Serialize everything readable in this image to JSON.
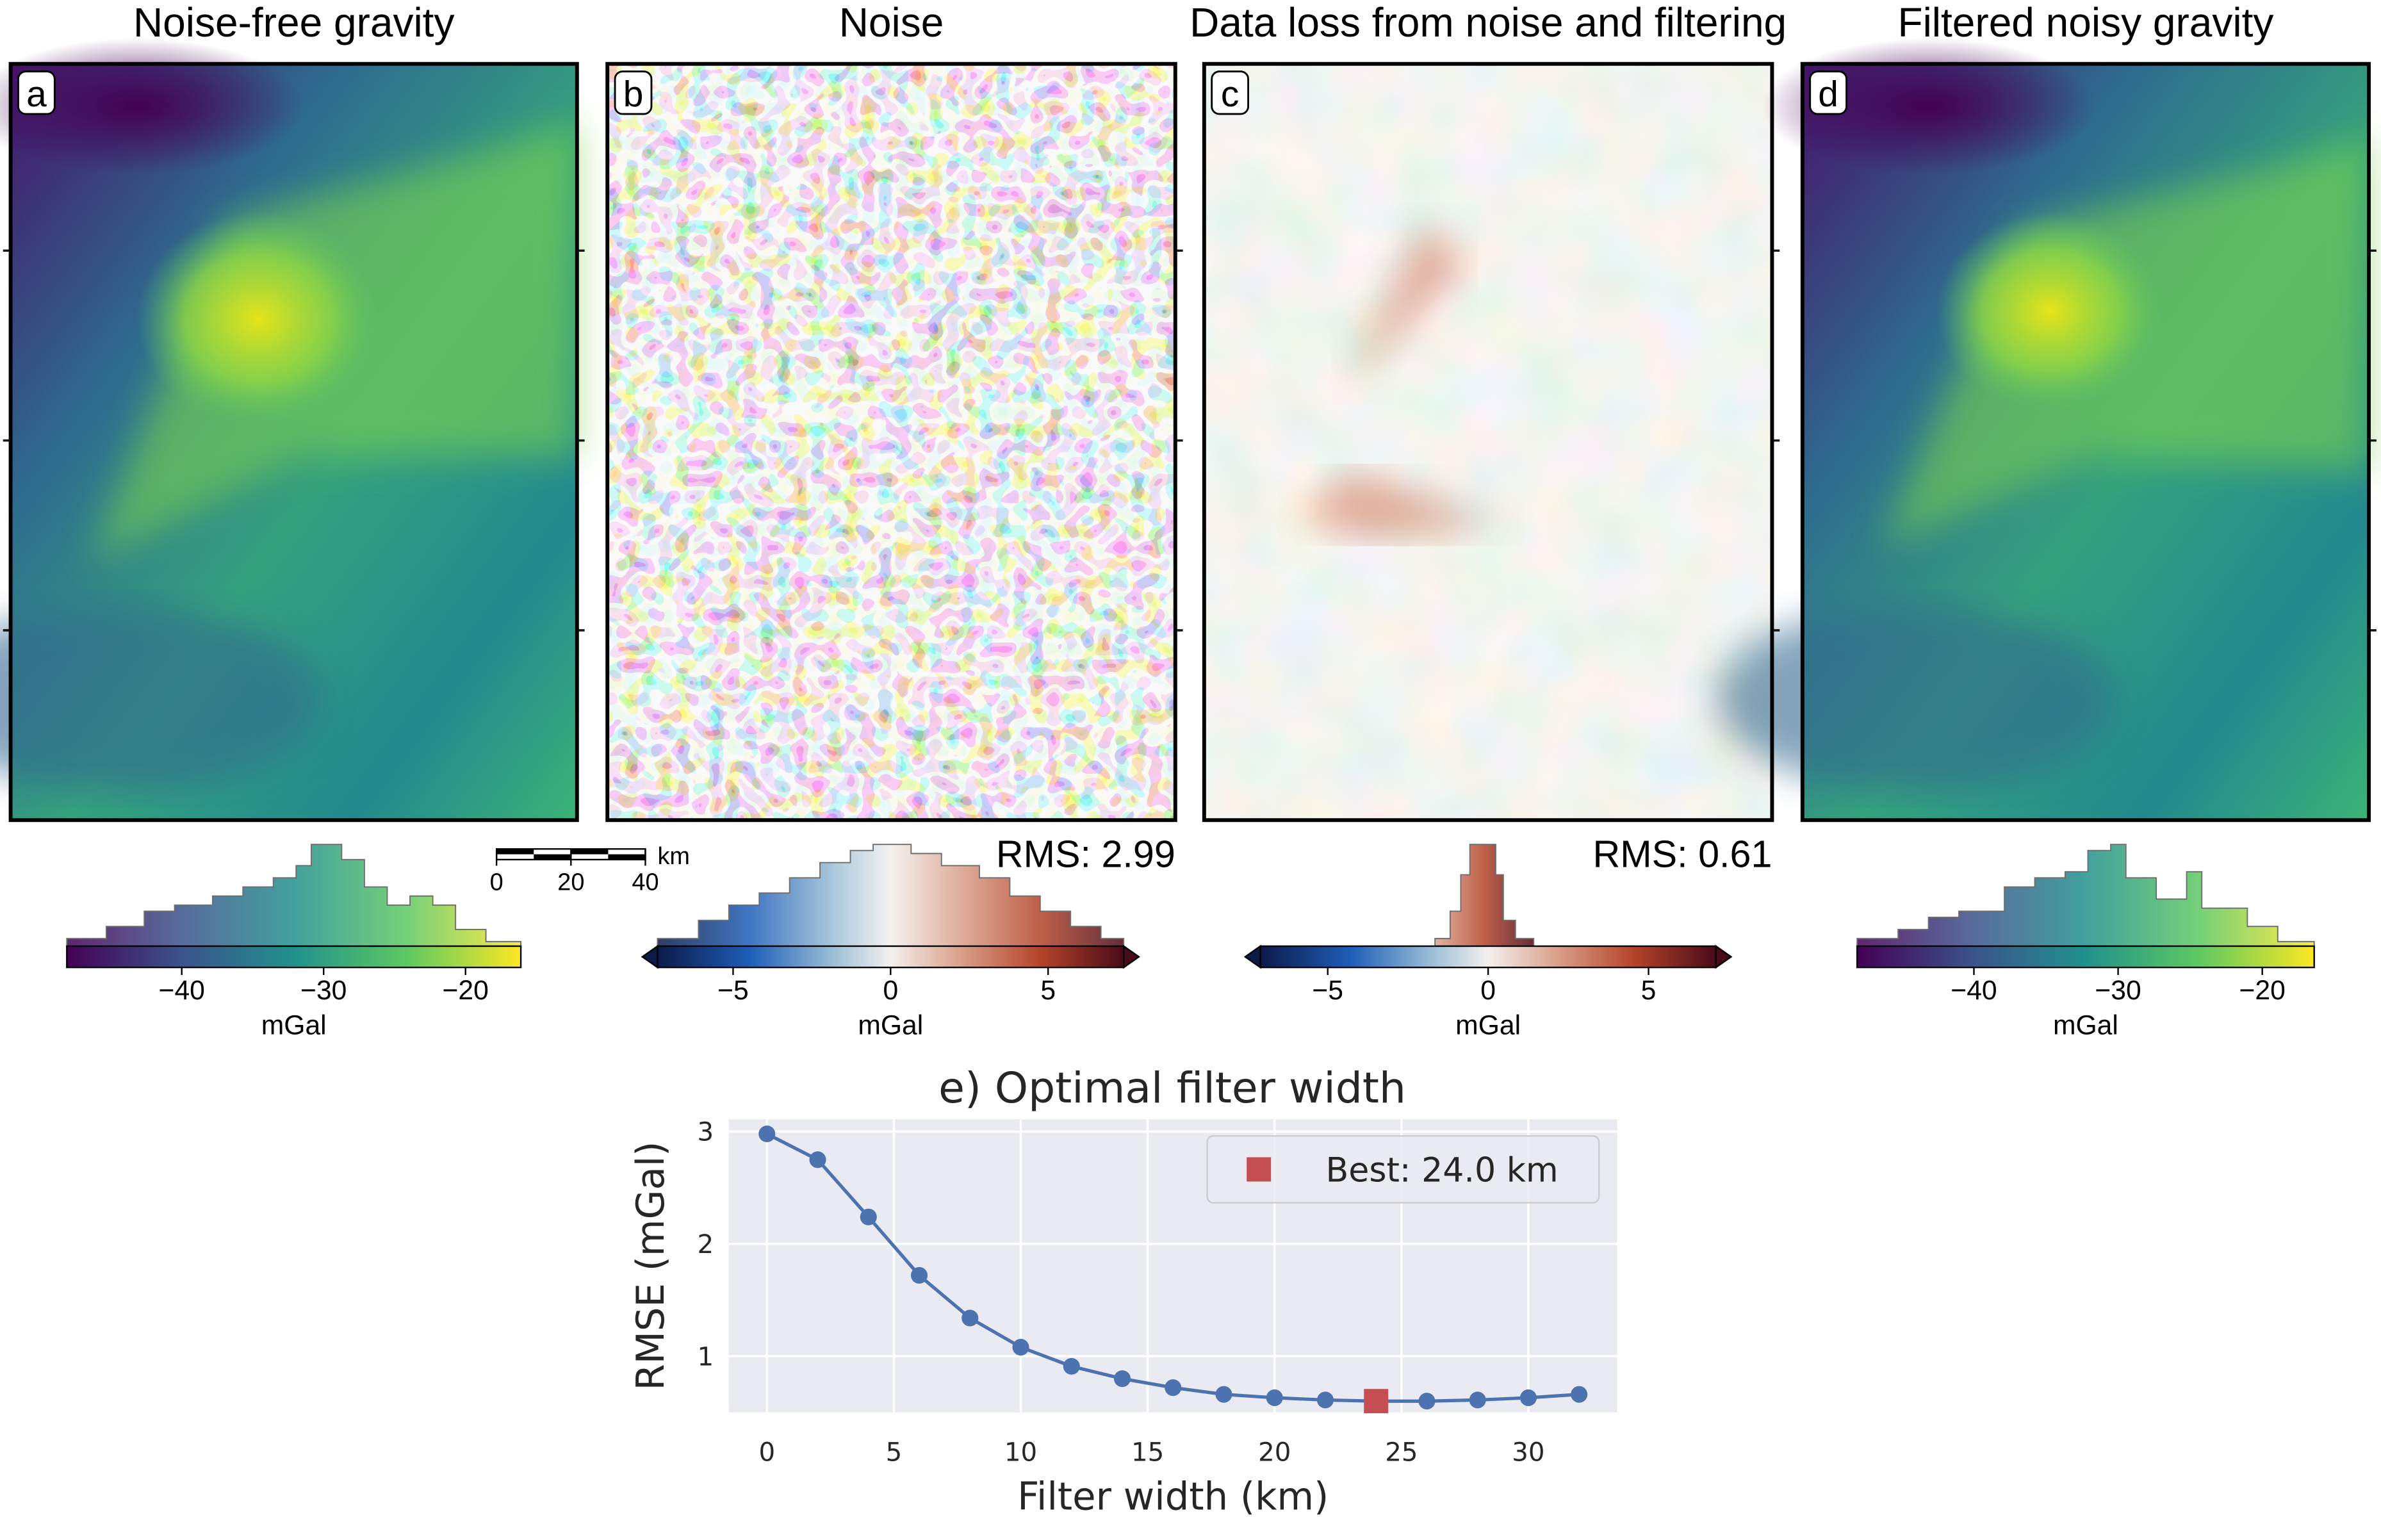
{
  "panels": [
    {
      "label": "a",
      "title": "Noise-free gravity",
      "colorbar": {
        "xlim": [
          -48.1,
          -16.1
        ],
        "xticks": [
          {
            "value": -40,
            "label": "−40"
          },
          {
            "value": -30,
            "label": "−30"
          },
          {
            "value": -20,
            "label": "−20"
          }
        ],
        "label": "mGal",
        "cmap": "viridis"
      }
    },
    {
      "label": "b",
      "title": "Noise",
      "rms": "RMS: 2.99",
      "colorbar": {
        "xlim": [
          -7.4,
          7.4
        ],
        "xticks": [
          {
            "value": -5,
            "label": "−5"
          },
          0,
          5
        ],
        "label": "mGal",
        "cmap": "diverging"
      }
    },
    {
      "label": "c",
      "title": "Data loss from noise and filtering",
      "rms": "RMS: 0.61",
      "colorbar": {
        "xlim": [
          -7.1,
          7.1
        ],
        "xticks": [
          {
            "value": -5,
            "label": "−5"
          },
          0,
          5
        ],
        "label": "mGal",
        "cmap": "diverging"
      }
    },
    {
      "label": "d",
      "title": "Filtered noisy gravity",
      "colorbar": {
        "xlim": [
          -48.1,
          -16.4
        ],
        "xticks": [
          {
            "value": -40,
            "label": "−40"
          },
          {
            "value": -30,
            "label": "−30"
          },
          {
            "value": -20,
            "label": "−20"
          }
        ],
        "label": "mGal",
        "cmap": "viridis"
      }
    }
  ],
  "scalebar": {
    "ticks": [
      0,
      20,
      40
    ],
    "unit": "km"
  },
  "chart_data": {
    "type": "line",
    "title": "e) Optimal filter width",
    "xlabel": "Filter width (km)",
    "ylabel": "RMSE (mGal)",
    "x": [
      0,
      2,
      4,
      6,
      8,
      10,
      12,
      14,
      16,
      18,
      20,
      22,
      24,
      26,
      28,
      30,
      32
    ],
    "values": [
      2.98,
      2.75,
      2.24,
      1.72,
      1.34,
      1.08,
      0.91,
      0.8,
      0.72,
      0.66,
      0.63,
      0.61,
      0.6,
      0.6,
      0.61,
      0.63,
      0.66
    ],
    "color": "#4c72b0",
    "xlim": [
      -1.5,
      33.5
    ],
    "ylim": [
      0.5,
      3.11
    ],
    "xticks": [
      0,
      5,
      10,
      15,
      20,
      25,
      30
    ],
    "yticks": [
      1,
      2,
      3
    ],
    "grid": true,
    "best": {
      "x": 24,
      "value": 0.6,
      "label": "Best: 24.0 km",
      "color": "#c44e52"
    },
    "legend": "upper right"
  }
}
